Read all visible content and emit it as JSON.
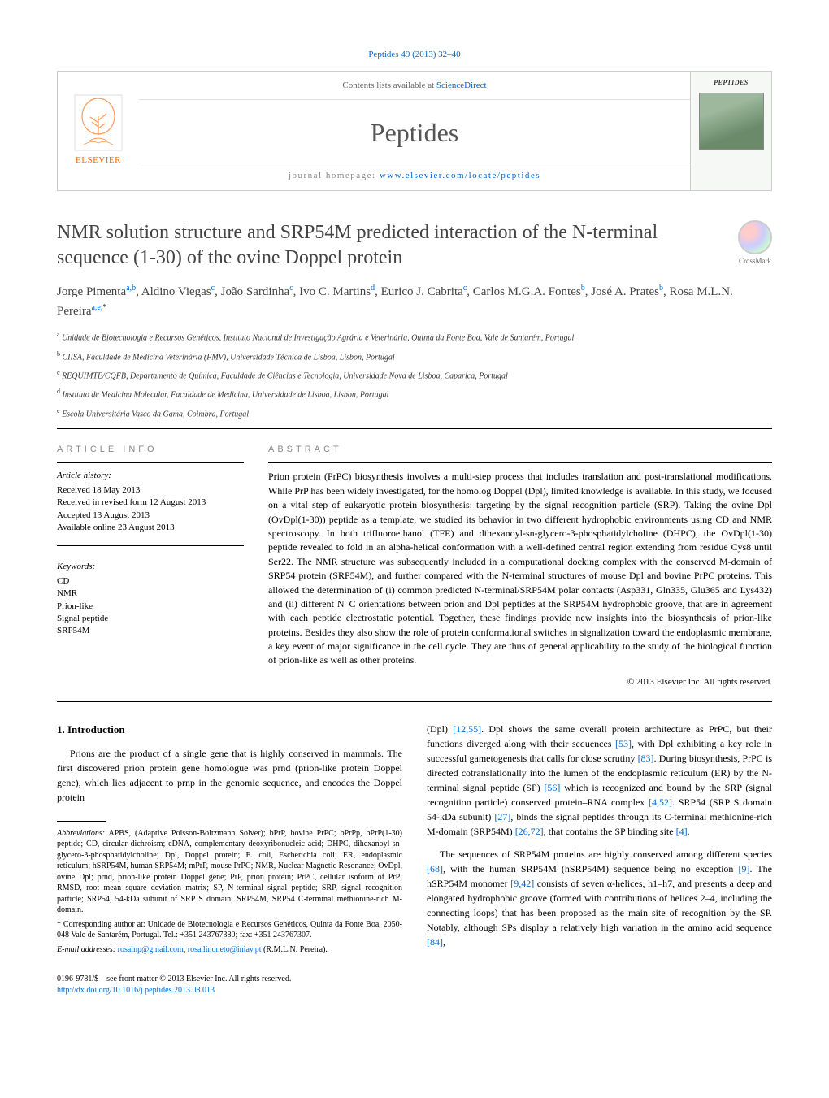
{
  "citation": "Peptides 49 (2013) 32–40",
  "header": {
    "contents_prefix": "Contents lists available at ",
    "contents_link": "ScienceDirect",
    "journal": "Peptides",
    "homepage_prefix": "journal homepage: ",
    "homepage_url": "www.elsevier.com/locate/peptides",
    "elsevier": "ELSEVIER",
    "cover_label": "PEPTIDES"
  },
  "crossmark": "CrossMark",
  "title": "NMR solution structure and SRP54M predicted interaction of the N-terminal sequence (1-30) of the ovine Doppel protein",
  "authors_html": "Jorge Pimenta|a,b|, Aldino Viegas|c|, João Sardinha|c|, Ivo C. Martins|d|, Eurico J. Cabrita|c|, Carlos M.G.A. Fontes|b|, José A. Prates|b|, Rosa M.L.N. Pereira|a,e,*|",
  "affiliations": [
    {
      "sup": "a",
      "text": "Unidade de Biotecnologia e Recursos Genéticos, Instituto Nacional de Investigação Agrária e Veterinária, Quinta da Fonte Boa, Vale de Santarém, Portugal"
    },
    {
      "sup": "b",
      "text": "CIISA, Faculdade de Medicina Veterinária (FMV), Universidade Técnica de Lisboa, Lisbon, Portugal"
    },
    {
      "sup": "c",
      "text": "REQUIMTE/CQFB, Departamento de Química, Faculdade de Ciências e Tecnologia, Universidade Nova de Lisboa, Caparica, Portugal"
    },
    {
      "sup": "d",
      "text": "Instituto de Medicina Molecular, Faculdade de Medicina, Universidade de Lisboa, Lisbon, Portugal"
    },
    {
      "sup": "e",
      "text": "Escola Universitária Vasco da Gama, Coimbra, Portugal"
    }
  ],
  "article_info": {
    "label": "ARTICLE INFO",
    "history_label": "Article history:",
    "history": [
      "Received 18 May 2013",
      "Received in revised form 12 August 2013",
      "Accepted 13 August 2013",
      "Available online 23 August 2013"
    ],
    "keywords_label": "Keywords:",
    "keywords": [
      "CD",
      "NMR",
      "Prion-like",
      "Signal peptide",
      "SRP54M"
    ]
  },
  "abstract": {
    "label": "ABSTRACT",
    "text": "Prion protein (PrPC) biosynthesis involves a multi-step process that includes translation and post-translational modifications. While PrP has been widely investigated, for the homolog Doppel (Dpl), limited knowledge is available. In this study, we focused on a vital step of eukaryotic protein biosynthesis: targeting by the signal recognition particle (SRP). Taking the ovine Dpl (OvDpl(1-30)) peptide as a template, we studied its behavior in two different hydrophobic environments using CD and NMR spectroscopy. In both trifluoroethanol (TFE) and dihexanoyl-sn-glycero-3-phosphatidylcholine (DHPC), the OvDpl(1-30) peptide revealed to fold in an alpha-helical conformation with a well-defined central region extending from residue Cys8 until Ser22. The NMR structure was subsequently included in a computational docking complex with the conserved M-domain of SRP54 protein (SRP54M), and further compared with the N-terminal structures of mouse Dpl and bovine PrPC proteins. This allowed the determination of (i) common predicted N-terminal/SRP54M polar contacts (Asp331, Gln335, Glu365 and Lys432) and (ii) different N–C orientations between prion and Dpl peptides at the SRP54M hydrophobic groove, that are in agreement with each peptide electrostatic potential. Together, these findings provide new insights into the biosynthesis of prion-like proteins. Besides they also show the role of protein conformational switches in signalization toward the endoplasmic membrane, a key event of major significance in the cell cycle. They are thus of general applicability to the study of the biological function of prion-like as well as other proteins.",
    "copyright": "© 2013 Elsevier Inc. All rights reserved."
  },
  "body": {
    "section_number": "1.",
    "section_title": "Introduction",
    "col1_p1": "Prions are the product of a single gene that is highly conserved in mammals. The first discovered prion protein gene homologue was prnd (prion-like protein Doppel gene), which lies adjacent to prnp in the genomic sequence, and encodes the Doppel protein",
    "col2_p1_a": "(Dpl) ",
    "col2_p1_ref1": "[12,55]",
    "col2_p1_b": ". Dpl shows the same overall protein architecture as PrPC, but their functions diverged along with their sequences ",
    "col2_p1_ref2": "[53]",
    "col2_p1_c": ", with Dpl exhibiting a key role in successful gametogenesis that calls for close scrutiny ",
    "col2_p1_ref3": "[83]",
    "col2_p1_d": ". During biosynthesis, PrPC is directed cotranslationally into the lumen of the endoplasmic reticulum (ER) by the N-terminal signal peptide (SP) ",
    "col2_p1_ref4": "[56]",
    "col2_p1_e": " which is recognized and bound by the SRP (signal recognition particle) conserved protein–RNA complex ",
    "col2_p1_ref5": "[4,52]",
    "col2_p1_f": ". SRP54 (SRP S domain 54-kDa subunit) ",
    "col2_p1_ref6": "[27]",
    "col2_p1_g": ", binds the signal peptides through its C-terminal methionine-rich M-domain (SRP54M) ",
    "col2_p1_ref7": "[26,72]",
    "col2_p1_h": ", that contains the SP binding site ",
    "col2_p1_ref8": "[4]",
    "col2_p1_i": ".",
    "col2_p2_a": "The sequences of SRP54M proteins are highly conserved among different species ",
    "col2_p2_ref1": "[68]",
    "col2_p2_b": ", with the human SRP54M (hSRP54M) sequence being no exception ",
    "col2_p2_ref2": "[9]",
    "col2_p2_c": ". The hSRP54M monomer ",
    "col2_p2_ref3": "[9,42]",
    "col2_p2_d": " consists of seven α-helices, h1–h7, and presents a deep and elongated hydrophobic groove (formed with contributions of helices 2–4, including the connecting loops) that has been proposed as the main site of recognition by the SP. Notably, although SPs display a relatively high variation in the amino acid sequence ",
    "col2_p2_ref4": "[84]",
    "col2_p2_e": ","
  },
  "footnotes": {
    "abbrev_label": "Abbreviations:",
    "abbrev_text": " APBS, (Adaptive Poisson-Boltzmann Solver); bPrP, bovine PrPC; bPrPp, bPrP(1-30) peptide; CD, circular dichroism; cDNA, complementary deoxyribonucleic acid; DHPC, dihexanoyl-sn-glycero-3-phosphatidylcholine; Dpl, Doppel protein; E. coli, Escherichia coli; ER, endoplasmic reticulum; hSRP54M, human SRP54M; mPrP, mouse PrPC; NMR, Nuclear Magnetic Resonance; OvDpl, ovine Dpl; prnd, prion-like protein Doppel gene; PrP, prion protein; PrPC, cellular isoform of PrP; RMSD, root mean square deviation matrix; SP, N-terminal signal peptide; SRP, signal recognition particle; SRP54, 54-kDa subunit of SRP S domain; SRP54M, SRP54 C-terminal methionine-rich M-domain.",
    "corr_label": "* Corresponding author at:",
    "corr_text": " Unidade de Biotecnologia e Recursos Genéticos, Quinta da Fonte Boa, 2050-048 Vale de Santarém, Portugal. Tel.: +351 243767380; fax: +351 243767307.",
    "email_label": "E-mail addresses:",
    "email1": "rosalnp@gmail.com",
    "email_sep": ", ",
    "email2": "rosa.linoneto@iniav.pt",
    "email_suffix": " (R.M.L.N. Pereira)."
  },
  "footer": {
    "line1": "0196-9781/$ – see front matter © 2013 Elsevier Inc. All rights reserved.",
    "doi": "http://dx.doi.org/10.1016/j.peptides.2013.08.013"
  },
  "colors": {
    "link": "#0066cc",
    "elsevier_orange": "#ff6600",
    "text_gray": "#444444",
    "light_gray": "#888888"
  }
}
